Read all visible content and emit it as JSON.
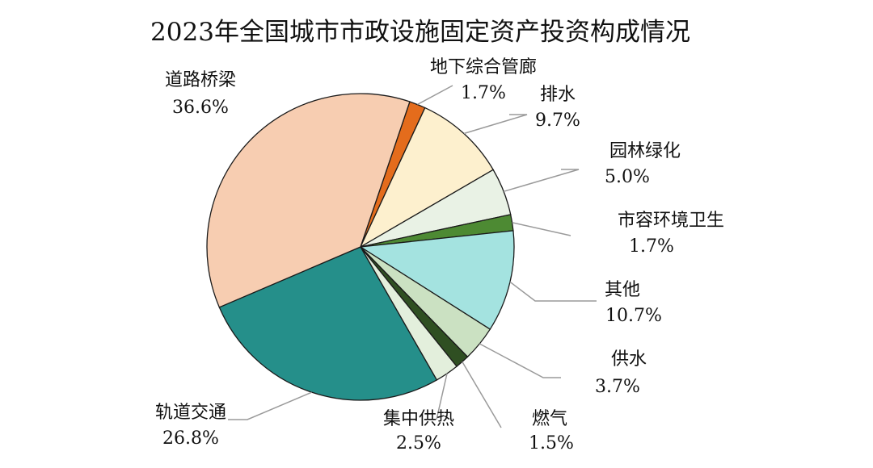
{
  "chart_data": {
    "type": "pie",
    "title": "2023年全国城市市政设施固定资产投资构成情况",
    "slices": [
      {
        "name": "地下综合管廊",
        "value": 1.7,
        "label": "1.7%",
        "color": "#e46c1c"
      },
      {
        "name": "排水",
        "value": 9.7,
        "label": "9.7%",
        "color": "#fdf0ce"
      },
      {
        "name": "园林绿化",
        "value": 5.0,
        "label": "5.0%",
        "color": "#e9f2e5"
      },
      {
        "name": "市容环境卫生",
        "value": 1.7,
        "label": "1.7%",
        "color": "#4d8a33"
      },
      {
        "name": "其他",
        "value": 10.7,
        "label": "10.7%",
        "color": "#a4e3e0"
      },
      {
        "name": "供水",
        "value": 3.7,
        "label": "3.7%",
        "color": "#cbe1c2"
      },
      {
        "name": "燃气",
        "value": 1.5,
        "label": "1.5%",
        "color": "#2f4f22"
      },
      {
        "name": "集中供热",
        "value": 2.5,
        "label": "2.5%",
        "color": "#e3efdc"
      },
      {
        "name": "轨道交通",
        "value": 26.8,
        "label": "26.8%",
        "color": "#258f8a"
      },
      {
        "name": "道路桥梁",
        "value": 36.6,
        "label": "36.6%",
        "color": "#f7cdb1"
      }
    ]
  }
}
